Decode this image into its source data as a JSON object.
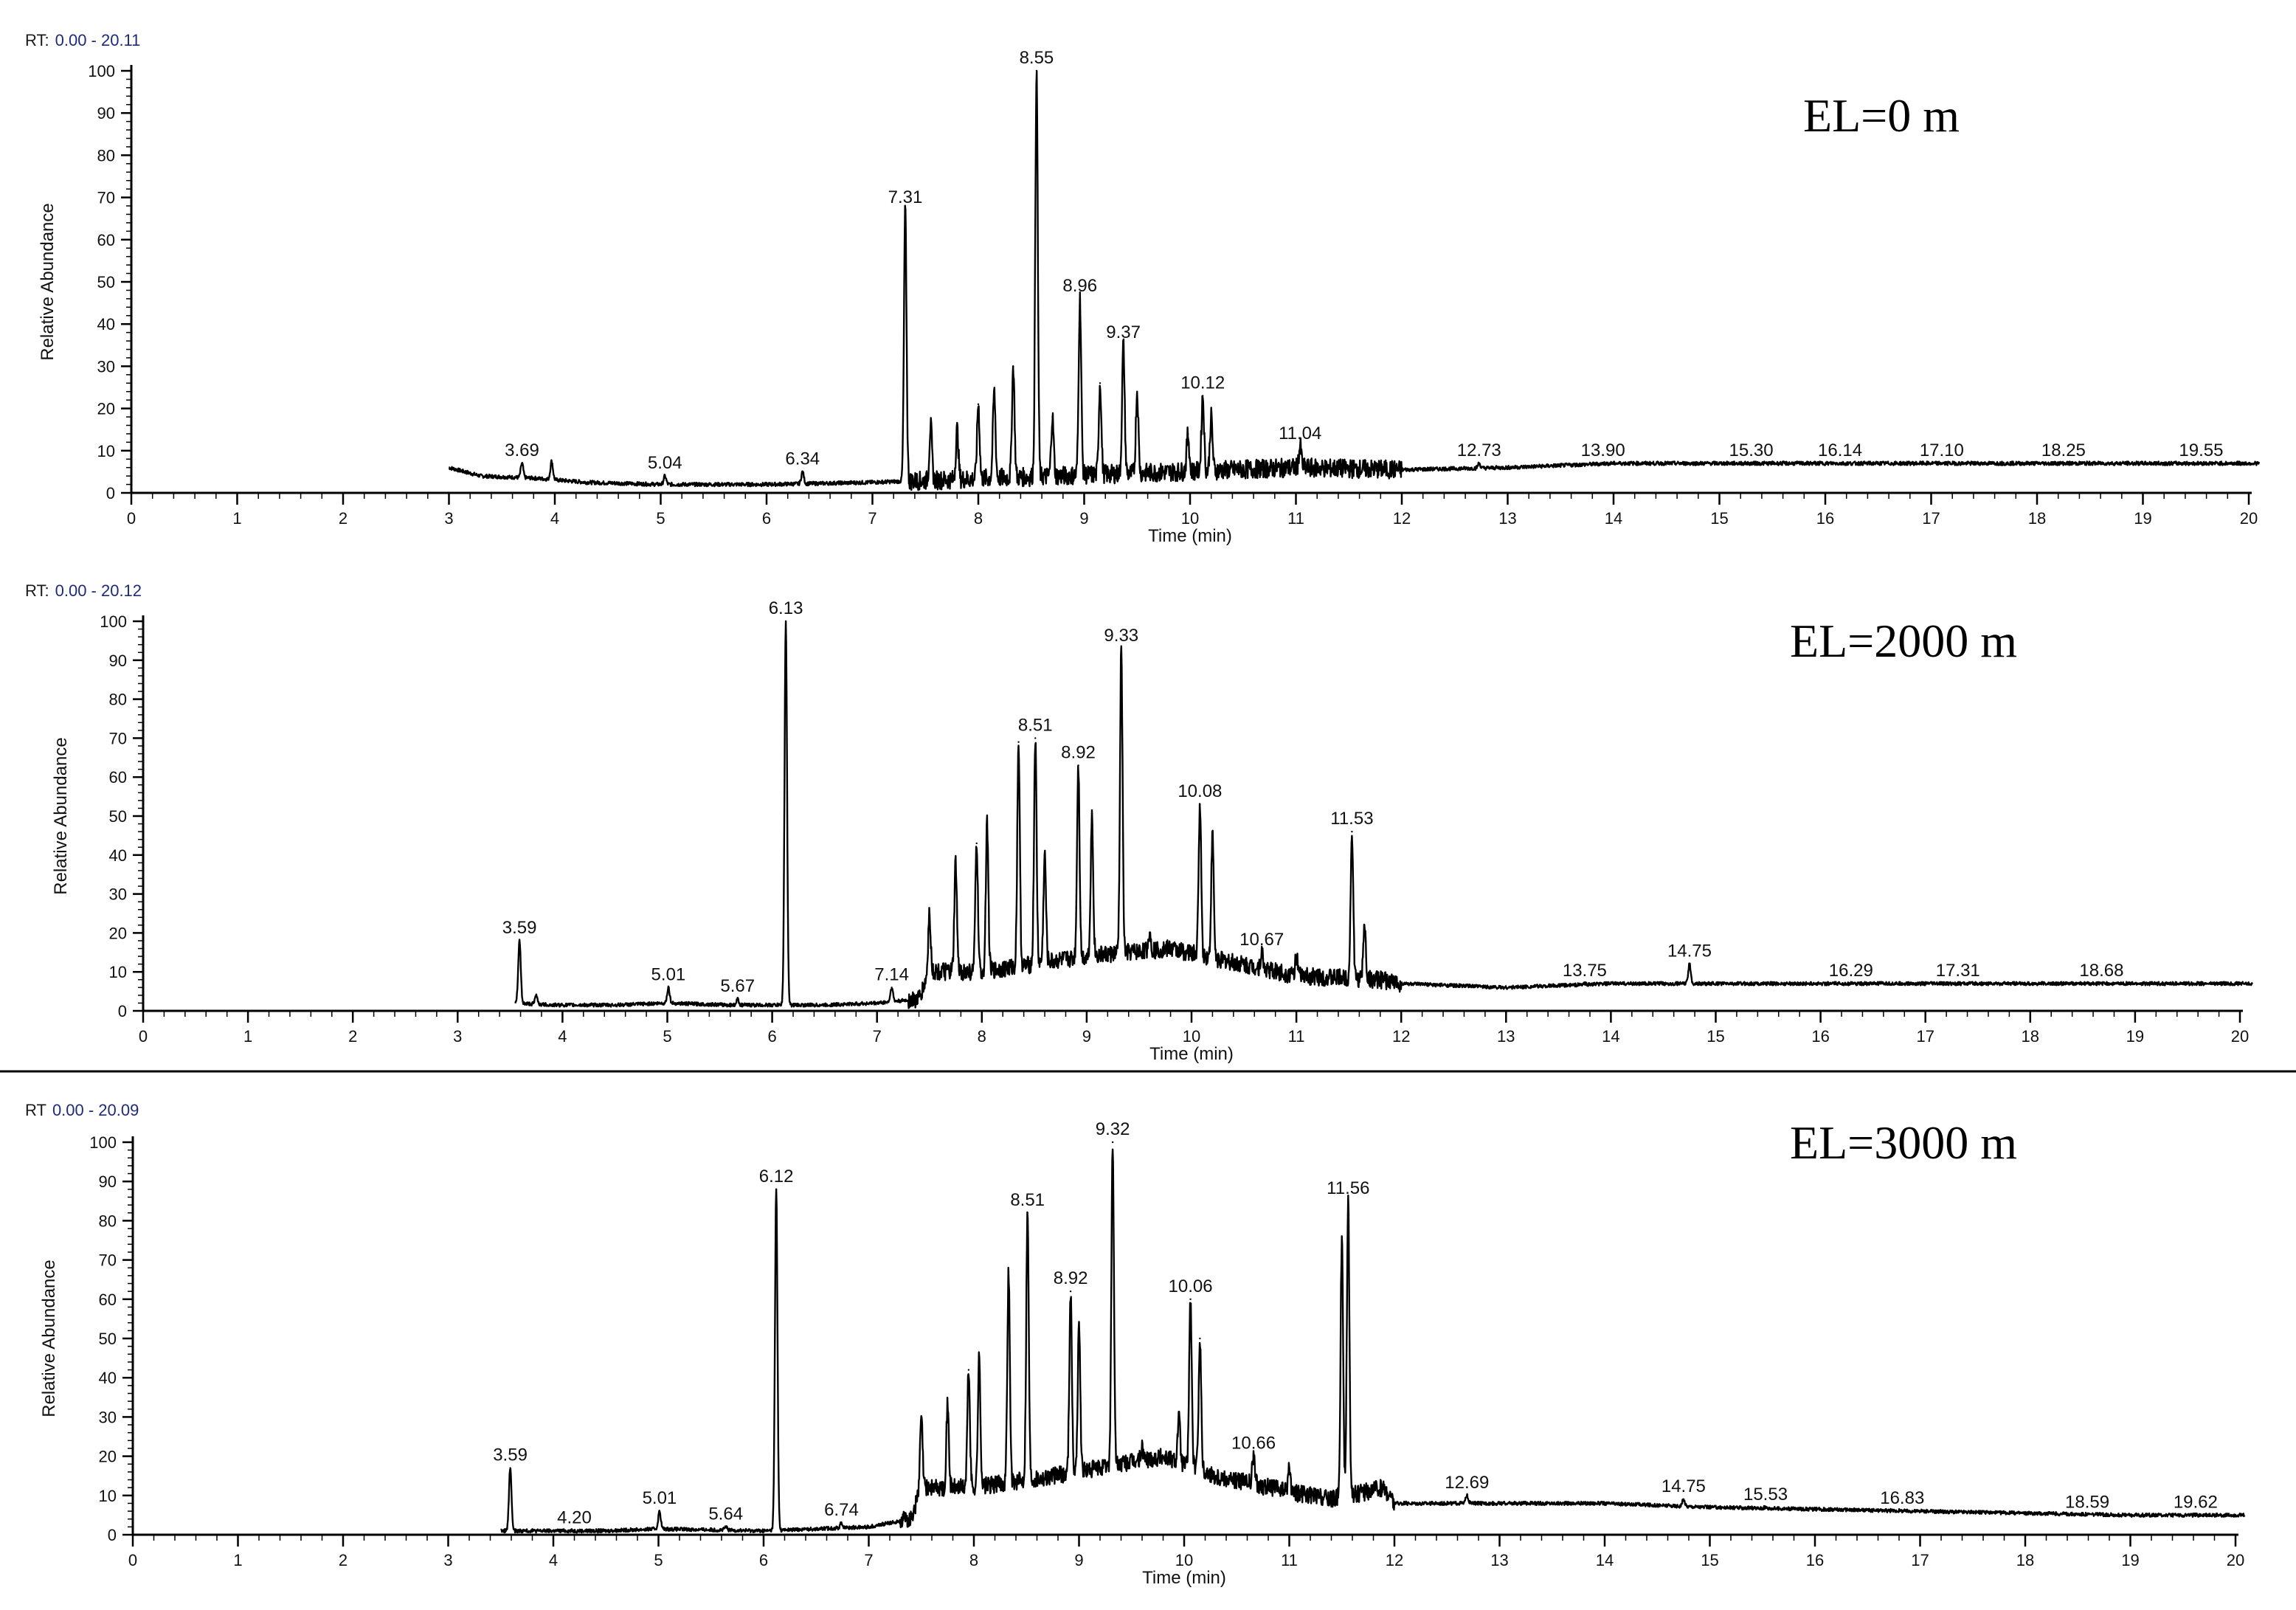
{
  "chart_data": [
    {
      "type": "line",
      "rt_prefix": "RT:",
      "rt_range": "0.00 - 20.11",
      "condition_label": "EL=0 m",
      "xlabel": "Time (min)",
      "ylabel": "Relative Abundance",
      "xlim": [
        0,
        20
      ],
      "ylim": [
        0,
        100
      ],
      "x_ticks": [
        "0",
        "1",
        "2",
        "3",
        "4",
        "5",
        "6",
        "7",
        "8",
        "9",
        "10",
        "11",
        "12",
        "13",
        "14",
        "15",
        "16",
        "17",
        "18",
        "19",
        "20"
      ],
      "y_ticks": [
        "0",
        "10",
        "20",
        "30",
        "40",
        "50",
        "60",
        "70",
        "80",
        "90",
        "100"
      ],
      "baseline": [
        [
          3.0,
          6
        ],
        [
          3.3,
          4
        ],
        [
          3.8,
          3.5
        ],
        [
          4.3,
          2.5
        ],
        [
          5.0,
          2
        ],
        [
          6.0,
          2
        ],
        [
          7.0,
          2.5
        ],
        [
          11.0,
          6
        ],
        [
          12.0,
          5.5
        ],
        [
          13.0,
          6
        ],
        [
          14.0,
          7
        ],
        [
          20.1,
          7
        ]
      ],
      "peaks": [
        {
          "x": 3.69,
          "y": 7,
          "label": "3.69"
        },
        {
          "x": 3.97,
          "y": 7.5
        },
        {
          "x": 5.04,
          "y": 4,
          "label": "5.04"
        },
        {
          "x": 6.34,
          "y": 5,
          "label": "6.34"
        },
        {
          "x": 7.31,
          "y": 67,
          "label": "7.31"
        },
        {
          "x": 7.55,
          "y": 16
        },
        {
          "x": 7.8,
          "y": 15
        },
        {
          "x": 8.0,
          "y": 21
        },
        {
          "x": 8.15,
          "y": 24
        },
        {
          "x": 8.33,
          "y": 30
        },
        {
          "x": 8.55,
          "y": 100,
          "label": "8.55"
        },
        {
          "x": 8.7,
          "y": 18
        },
        {
          "x": 8.96,
          "y": 46,
          "label": "8.96"
        },
        {
          "x": 9.15,
          "y": 26
        },
        {
          "x": 9.37,
          "y": 35,
          "label": "9.37"
        },
        {
          "x": 9.5,
          "y": 24
        },
        {
          "x": 9.98,
          "y": 14
        },
        {
          "x": 10.12,
          "y": 23,
          "label": "10.12"
        },
        {
          "x": 10.2,
          "y": 18
        },
        {
          "x": 11.04,
          "y": 11,
          "label": "11.04"
        },
        {
          "x": 12.73,
          "y": 7,
          "label": "12.73"
        },
        {
          "x": 13.9,
          "y": 7,
          "label": "13.90"
        },
        {
          "x": 15.3,
          "y": 7,
          "label": "15.30"
        },
        {
          "x": 16.14,
          "y": 7,
          "label": "16.14"
        },
        {
          "x": 17.1,
          "y": 7,
          "label": "17.10"
        },
        {
          "x": 18.25,
          "y": 7,
          "label": "18.25"
        },
        {
          "x": 19.55,
          "y": 7,
          "label": "19.55"
        }
      ]
    },
    {
      "type": "line",
      "rt_prefix": "RT:",
      "rt_range": "0.00 - 20.12",
      "condition_label": "EL=2000 m",
      "xlabel": "Time (min)",
      "ylabel": "Relative Abundance",
      "xlim": [
        0,
        20
      ],
      "ylim": [
        0,
        100
      ],
      "x_ticks": [
        "0",
        "1",
        "2",
        "3",
        "4",
        "5",
        "6",
        "7",
        "8",
        "9",
        "10",
        "11",
        "12",
        "13",
        "14",
        "15",
        "16",
        "17",
        "18",
        "19",
        "20"
      ],
      "y_ticks": [
        "0",
        "10",
        "20",
        "30",
        "40",
        "50",
        "60",
        "70",
        "80",
        "90",
        "100"
      ],
      "baseline": [
        [
          3.55,
          2
        ],
        [
          3.9,
          1.5
        ],
        [
          4.5,
          1.5
        ],
        [
          5.0,
          2
        ],
        [
          5.6,
          1.5
        ],
        [
          6.0,
          1.5
        ],
        [
          6.5,
          1.5
        ],
        [
          7.0,
          2
        ],
        [
          7.4,
          3
        ],
        [
          7.5,
          10
        ],
        [
          8.0,
          10
        ],
        [
          9.0,
          14
        ],
        [
          9.8,
          16
        ],
        [
          10.3,
          13
        ],
        [
          11.0,
          9
        ],
        [
          11.8,
          8
        ],
        [
          12.0,
          7
        ],
        [
          13.0,
          6
        ],
        [
          14.0,
          7
        ],
        [
          20.12,
          7
        ]
      ],
      "peaks": [
        {
          "x": 3.59,
          "y": 18,
          "label": "3.59"
        },
        {
          "x": 3.75,
          "y": 4
        },
        {
          "x": 5.01,
          "y": 6,
          "label": "5.01"
        },
        {
          "x": 5.67,
          "y": 3,
          "label": "5.67"
        },
        {
          "x": 6.13,
          "y": 100,
          "label": "6.13"
        },
        {
          "x": 7.14,
          "y": 6,
          "label": "7.14"
        },
        {
          "x": 7.5,
          "y": 25
        },
        {
          "x": 7.75,
          "y": 38
        },
        {
          "x": 7.95,
          "y": 43
        },
        {
          "x": 8.05,
          "y": 48
        },
        {
          "x": 8.35,
          "y": 69
        },
        {
          "x": 8.51,
          "y": 70,
          "label": "8.51"
        },
        {
          "x": 8.6,
          "y": 40
        },
        {
          "x": 8.92,
          "y": 63,
          "label": "8.92"
        },
        {
          "x": 9.05,
          "y": 50
        },
        {
          "x": 9.33,
          "y": 93,
          "label": "9.33"
        },
        {
          "x": 9.6,
          "y": 20
        },
        {
          "x": 10.08,
          "y": 53,
          "label": "10.08"
        },
        {
          "x": 10.2,
          "y": 45
        },
        {
          "x": 10.67,
          "y": 15,
          "label": "10.67"
        },
        {
          "x": 11.0,
          "y": 14
        },
        {
          "x": 11.53,
          "y": 46,
          "label": "11.53"
        },
        {
          "x": 11.65,
          "y": 22
        },
        {
          "x": 13.75,
          "y": 7,
          "label": "13.75"
        },
        {
          "x": 14.75,
          "y": 12,
          "label": "14.75"
        },
        {
          "x": 16.29,
          "y": 7,
          "label": "16.29"
        },
        {
          "x": 17.31,
          "y": 7,
          "label": "17.31"
        },
        {
          "x": 18.68,
          "y": 7,
          "label": "18.68"
        }
      ]
    },
    {
      "type": "line",
      "rt_prefix": "RT",
      "rt_range": "0.00 - 20.09",
      "condition_label": "EL=3000 m",
      "xlabel": "Time (min)",
      "ylabel": "Relative Abundance",
      "xlim": [
        0,
        20
      ],
      "ylim": [
        0,
        100
      ],
      "x_ticks": [
        "0",
        "1",
        "2",
        "3",
        "4",
        "5",
        "6",
        "7",
        "8",
        "9",
        "10",
        "11",
        "12",
        "13",
        "14",
        "15",
        "16",
        "17",
        "18",
        "19",
        "20"
      ],
      "y_ticks": [
        "0",
        "10",
        "20",
        "30",
        "40",
        "50",
        "60",
        "70",
        "80",
        "90",
        "100"
      ],
      "baseline": [
        [
          3.5,
          1
        ],
        [
          4.0,
          1
        ],
        [
          4.5,
          1
        ],
        [
          5.0,
          1.5
        ],
        [
          6.0,
          1
        ],
        [
          7.0,
          2
        ],
        [
          7.4,
          4
        ],
        [
          7.5,
          12
        ],
        [
          8.0,
          12
        ],
        [
          9.0,
          16
        ],
        [
          9.8,
          20
        ],
        [
          10.3,
          15
        ],
        [
          11.0,
          11
        ],
        [
          11.4,
          9
        ],
        [
          11.9,
          12
        ],
        [
          12.0,
          8
        ],
        [
          13.0,
          8
        ],
        [
          14.0,
          8
        ],
        [
          15.0,
          7
        ],
        [
          17.0,
          6
        ],
        [
          19.0,
          5
        ],
        [
          20.09,
          5
        ]
      ],
      "peaks": [
        {
          "x": 3.59,
          "y": 17,
          "label": "3.59"
        },
        {
          "x": 4.2,
          "y": 1,
          "label": "4.20"
        },
        {
          "x": 5.01,
          "y": 6,
          "label": "5.01"
        },
        {
          "x": 5.64,
          "y": 2,
          "label": "5.64"
        },
        {
          "x": 6.12,
          "y": 88,
          "label": "6.12"
        },
        {
          "x": 6.74,
          "y": 3,
          "label": "6.74"
        },
        {
          "x": 7.5,
          "y": 30
        },
        {
          "x": 7.75,
          "y": 33
        },
        {
          "x": 7.95,
          "y": 42
        },
        {
          "x": 8.05,
          "y": 45
        },
        {
          "x": 8.33,
          "y": 67
        },
        {
          "x": 8.51,
          "y": 82,
          "label": "8.51"
        },
        {
          "x": 8.92,
          "y": 62,
          "label": "8.92"
        },
        {
          "x": 9.0,
          "y": 54
        },
        {
          "x": 9.32,
          "y": 100,
          "label": "9.32"
        },
        {
          "x": 9.6,
          "y": 22
        },
        {
          "x": 9.95,
          "y": 30
        },
        {
          "x": 10.06,
          "y": 60,
          "label": "10.06"
        },
        {
          "x": 10.15,
          "y": 50
        },
        {
          "x": 10.66,
          "y": 20,
          "label": "10.66"
        },
        {
          "x": 11.0,
          "y": 17
        },
        {
          "x": 11.5,
          "y": 75
        },
        {
          "x": 11.56,
          "y": 85,
          "label": "11.56"
        },
        {
          "x": 12.69,
          "y": 10,
          "label": "12.69"
        },
        {
          "x": 14.75,
          "y": 9,
          "label": "14.75"
        },
        {
          "x": 15.53,
          "y": 7,
          "label": "15.53"
        },
        {
          "x": 16.83,
          "y": 6,
          "label": "16.83"
        },
        {
          "x": 18.59,
          "y": 5,
          "label": "18.59"
        },
        {
          "x": 19.62,
          "y": 5,
          "label": "19.62"
        }
      ]
    }
  ]
}
